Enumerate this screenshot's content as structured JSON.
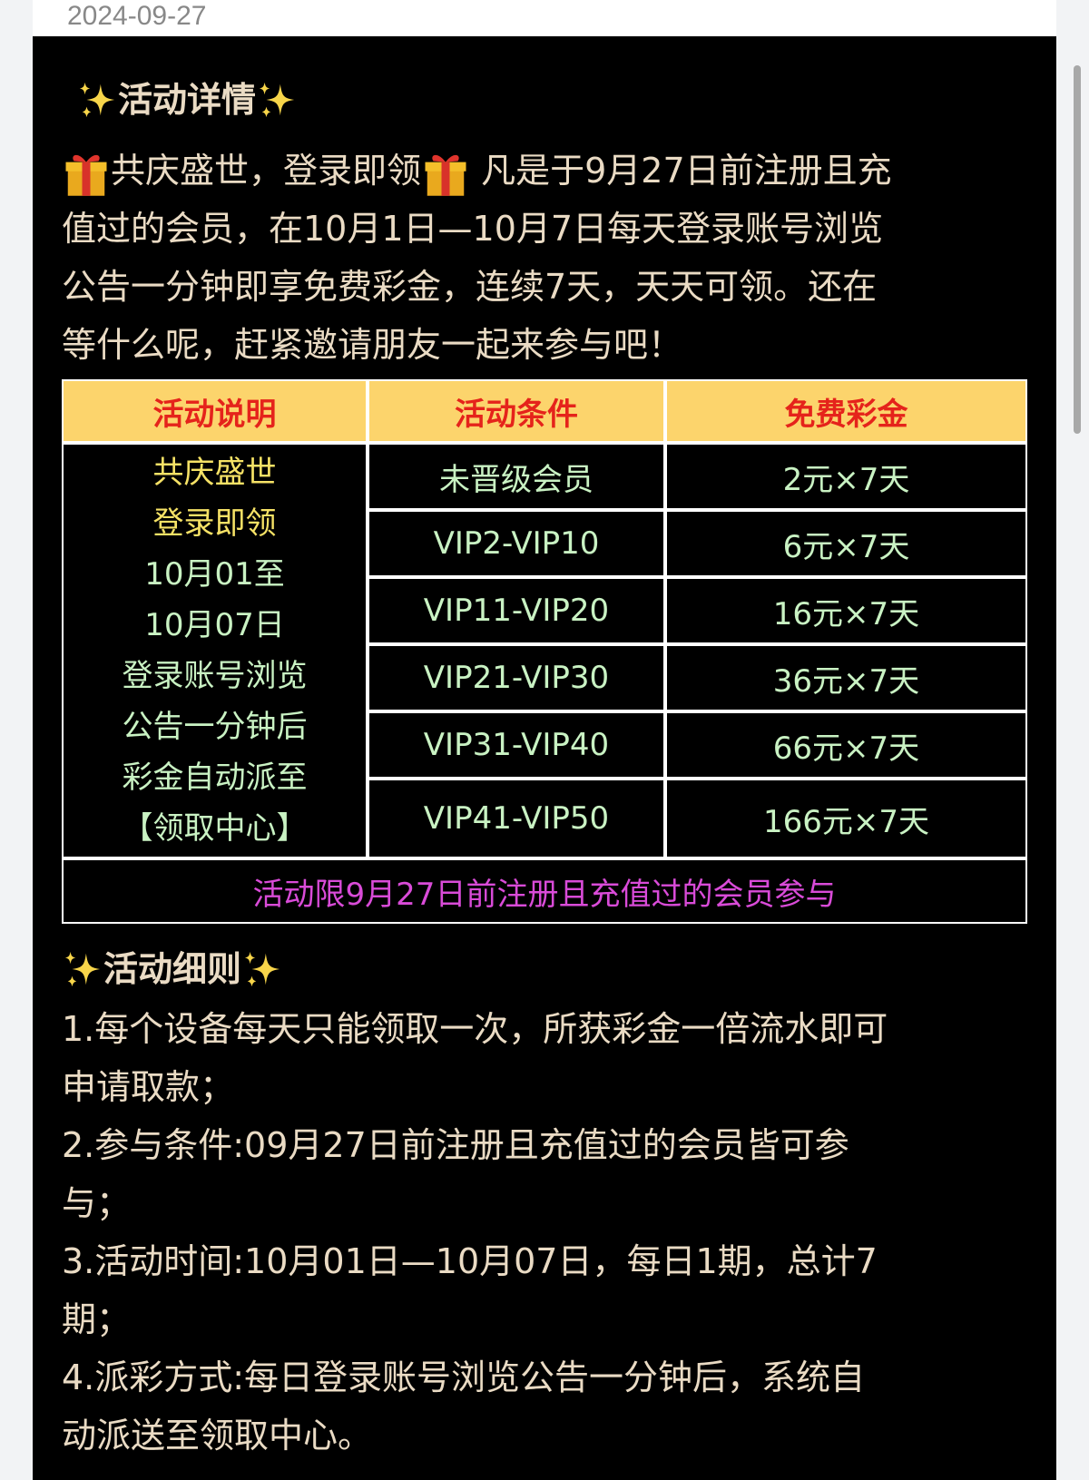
{
  "date": "2024-09-27",
  "details": {
    "title": "活动详情",
    "intro_lead": "共庆盛世，登录即领",
    "lines": [
      " 凡是于9月27日前注册且充",
      "值过的会员，在10月1日—10月7日每天登录账号浏览",
      "公告一分钟即享免费彩金，连续7天，天天可领。还在",
      "等什么呢，赶紧邀请朋友一起来参与吧！"
    ]
  },
  "table": {
    "headers": [
      "活动说明",
      "活动条件",
      "免费彩金"
    ],
    "description_lines_yellow": [
      "共庆盛世",
      "登录即领"
    ],
    "description_lines": [
      "10月01至",
      "10月07日",
      "登录账号浏览",
      "公告一分钟后",
      "彩金自动派至",
      "【领取中心】"
    ],
    "rows": [
      {
        "condition": "未晋级会员",
        "bonus": "2元×7天"
      },
      {
        "condition": "VIP2-VIP10",
        "bonus": "6元×7天"
      },
      {
        "condition": "VIP11-VIP20",
        "bonus": "16元×7天"
      },
      {
        "condition": "VIP21-VIP30",
        "bonus": "36元×7天"
      },
      {
        "condition": "VIP31-VIP40",
        "bonus": "66元×7天"
      },
      {
        "condition": "VIP41-VIP50",
        "bonus": "166元×7天"
      }
    ],
    "footer": "活动限9月27日前注册且充值过的会员参与"
  },
  "rules": {
    "title": "活动细则",
    "lines": [
      "1.每个设备每天只能领取一次，所获彩金一倍流水即可",
      "申请取款；",
      "2.参与条件:09月27日前注册且充值过的会员皆可参",
      "与；",
      "3.活动时间:10月01日—10月07日，每日1期，总计7",
      "期；",
      "4.派彩方式:每日登录账号浏览公告一分钟后，系统自",
      "动派送至领取中心。"
    ]
  },
  "colors": {
    "header_bg": "#fcd46c",
    "header_text": "#e5231b",
    "yellow": "#f6e266",
    "green": "#c9f2c3",
    "magenta": "#d94bd8",
    "body_text": "#eadbc4"
  },
  "icons": [
    "sparkles-icon",
    "gift-icon"
  ]
}
